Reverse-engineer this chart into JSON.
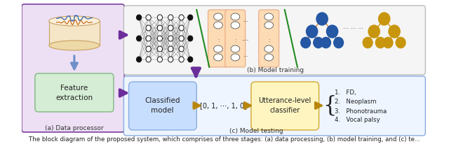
{
  "bg_color": "#ffffff",
  "caption": "The block diagram of the proposed system, which comprises of three stages: (a) data processing, (b) model training, and (c) te...",
  "caption_fontsize": 6.2,
  "panel_a_label": "(a) Data processor",
  "panel_b_label": "(b) Model training",
  "panel_c_label": "(c) Model testing",
  "feature_box_text": "Feature\nextraction",
  "classified_box_text": "Classified\nmodel",
  "utterance_box_text": "Utterance-level\nclassifier",
  "label_text": "[0, 1, ⋯, 1, 0]",
  "output_list_items": [
    "1.   FD,",
    "2.   Neoplasm",
    "3.   Phonotrauma",
    "4.   Vocal palsy"
  ],
  "purple": "#7B3FA0",
  "light_purple": "#EDE0F5",
  "light_blue_panel": "#D6E8F8",
  "light_green": "#D4EDD4",
  "light_yellow": "#FFF5CC",
  "light_peach": "#FDDBB4",
  "gold": "#C8960C",
  "dark_blue_tree": "#2457A4",
  "gold_tree": "#C8960C",
  "arrow_purple": "#6B2E9A",
  "arrow_gold": "#B8860B",
  "nn_color": "#111111",
  "green_slash": "#228B22",
  "panel_b_bg": "#F5F5F5",
  "panel_b_edge": "#BBBBBB",
  "panel_c_bg": "#EEF5FF",
  "panel_c_edge": "#8AABE0"
}
